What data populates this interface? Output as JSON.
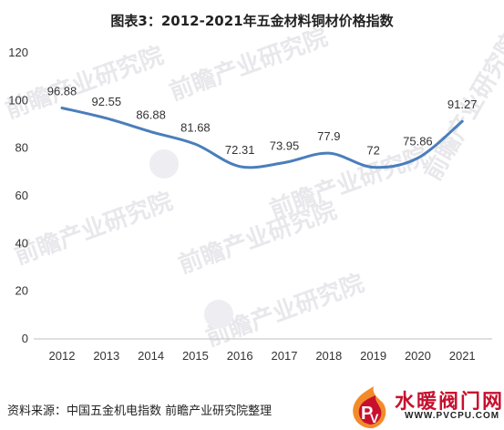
{
  "chart_data": {
    "type": "line",
    "title": "图表3：2012-2021年五金材料铜材价格指数",
    "xlabel": "",
    "ylabel": "",
    "categories": [
      "2012",
      "2013",
      "2014",
      "2015",
      "2016",
      "2017",
      "2018",
      "2019",
      "2020",
      "2021"
    ],
    "series": [
      {
        "values": [
          96.88,
          92.55,
          86.88,
          81.68,
          72.31,
          73.95,
          77.9,
          72,
          75.86,
          91.27
        ],
        "labels": [
          "96.88",
          "92.55",
          "86.88",
          "81.68",
          "72.31",
          "73.95",
          "77.9",
          "72",
          "75.86",
          "91.27"
        ],
        "color": "#4a7ebb"
      }
    ],
    "ylim": [
      0,
      120
    ],
    "yticks": [
      "0",
      "20",
      "40",
      "60",
      "80",
      "100",
      "120"
    ],
    "grid": false,
    "legend": "none"
  },
  "source": "资料来源：中国五金机电指数 前瞻产业研究院整理",
  "watermark": {
    "text": "前瞻产业研究院",
    "icon": "qianzhan-logo-icon"
  },
  "brand": {
    "name": "水暖阀门网",
    "url": "WWW.PVCPU.COM",
    "icon": "pv-flame-logo-icon",
    "colors": {
      "red": "#c8102e",
      "orange": "#f28c28"
    }
  }
}
